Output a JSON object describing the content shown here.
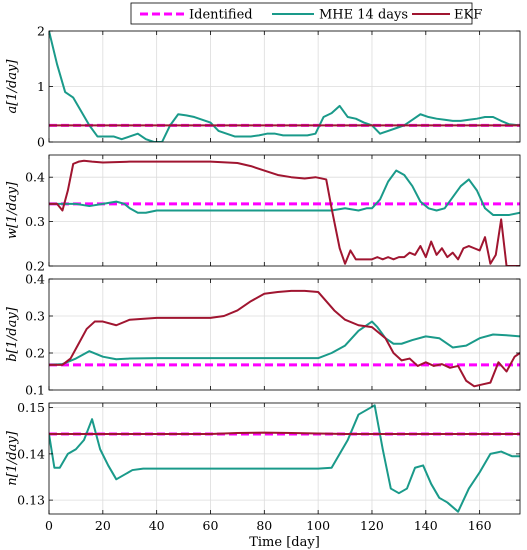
{
  "chart_data": [
    {
      "type": "line",
      "ylabel": "a[1/day]",
      "xlim": [
        0,
        175
      ],
      "ylim": [
        0,
        2
      ],
      "yticks": [
        0,
        1,
        2
      ],
      "ytick_labels": [
        "0",
        "1",
        "2"
      ],
      "grid": true,
      "series": [
        {
          "name": "Identified",
          "x": [
            0,
            175
          ],
          "y": [
            0.3,
            0.3
          ]
        },
        {
          "name": "MHE 14 days",
          "x": [
            0,
            3,
            6,
            9,
            12,
            15,
            18,
            21,
            24,
            27,
            30,
            33,
            36,
            39,
            42,
            45,
            48,
            51,
            54,
            57,
            60,
            63,
            66,
            69,
            72,
            75,
            78,
            81,
            84,
            87,
            90,
            93,
            96,
            99,
            102,
            105,
            108,
            111,
            114,
            117,
            120,
            123,
            126,
            129,
            132,
            135,
            138,
            141,
            144,
            147,
            150,
            153,
            156,
            159,
            162,
            165,
            168,
            171,
            175
          ],
          "y": [
            2.0,
            1.4,
            0.9,
            0.8,
            0.55,
            0.3,
            0.1,
            0.1,
            0.1,
            0.05,
            0.1,
            0.15,
            0.05,
            0.0,
            0.0,
            0.3,
            0.5,
            0.48,
            0.45,
            0.4,
            0.35,
            0.2,
            0.15,
            0.1,
            0.1,
            0.1,
            0.12,
            0.15,
            0.15,
            0.12,
            0.12,
            0.12,
            0.12,
            0.15,
            0.45,
            0.52,
            0.65,
            0.45,
            0.42,
            0.35,
            0.3,
            0.15,
            0.2,
            0.25,
            0.3,
            0.4,
            0.5,
            0.45,
            0.42,
            0.4,
            0.38,
            0.38,
            0.4,
            0.42,
            0.45,
            0.45,
            0.38,
            0.32,
            0.3
          ]
        },
        {
          "name": "EKF",
          "x": [
            0,
            175
          ],
          "y": [
            0.3,
            0.3
          ]
        }
      ]
    },
    {
      "type": "line",
      "ylabel": "w[1/day]",
      "xlim": [
        0,
        175
      ],
      "ylim": [
        0.2,
        0.45
      ],
      "yticks": [
        0.2,
        0.3,
        0.4
      ],
      "ytick_labels": [
        "0.2",
        "0.3",
        "0.4"
      ],
      "grid": true,
      "series": [
        {
          "name": "Identified",
          "x": [
            0,
            175
          ],
          "y": [
            0.34,
            0.34
          ]
        },
        {
          "name": "MHE 14 days",
          "x": [
            0,
            5,
            10,
            15,
            20,
            25,
            28,
            30,
            33,
            36,
            40,
            50,
            60,
            70,
            80,
            90,
            100,
            105,
            110,
            115,
            118,
            120,
            123,
            126,
            129,
            132,
            135,
            138,
            141,
            144,
            147,
            150,
            153,
            156,
            159,
            162,
            165,
            168,
            171,
            175
          ],
          "y": [
            0.34,
            0.34,
            0.34,
            0.335,
            0.34,
            0.345,
            0.34,
            0.33,
            0.32,
            0.32,
            0.325,
            0.325,
            0.325,
            0.325,
            0.325,
            0.325,
            0.325,
            0.325,
            0.33,
            0.325,
            0.33,
            0.33,
            0.35,
            0.39,
            0.415,
            0.405,
            0.38,
            0.345,
            0.33,
            0.325,
            0.33,
            0.355,
            0.38,
            0.395,
            0.37,
            0.33,
            0.315,
            0.315,
            0.315,
            0.32
          ]
        },
        {
          "name": "EKF",
          "x": [
            0,
            3,
            5,
            7,
            9,
            11,
            13,
            16,
            20,
            30,
            40,
            50,
            60,
            70,
            75,
            80,
            85,
            90,
            95,
            99,
            103,
            105,
            108,
            110,
            112,
            114,
            116,
            118,
            120,
            122,
            124,
            126,
            128,
            130,
            132,
            134,
            136,
            138,
            140,
            142,
            144,
            146,
            148,
            150,
            152,
            154,
            156,
            158,
            160,
            162,
            164,
            166,
            168,
            170,
            172,
            175
          ],
          "y": [
            0.34,
            0.34,
            0.325,
            0.37,
            0.43,
            0.435,
            0.437,
            0.435,
            0.433,
            0.435,
            0.435,
            0.435,
            0.435,
            0.432,
            0.425,
            0.415,
            0.405,
            0.4,
            0.397,
            0.4,
            0.395,
            0.33,
            0.24,
            0.205,
            0.235,
            0.215,
            0.215,
            0.215,
            0.215,
            0.22,
            0.215,
            0.22,
            0.215,
            0.22,
            0.22,
            0.23,
            0.225,
            0.245,
            0.22,
            0.255,
            0.225,
            0.24,
            0.22,
            0.23,
            0.215,
            0.24,
            0.245,
            0.24,
            0.235,
            0.265,
            0.205,
            0.225,
            0.305,
            0.2,
            0.2,
            0.2
          ]
        }
      ]
    },
    {
      "type": "line",
      "ylabel": "b[1/day]",
      "xlim": [
        0,
        175
      ],
      "ylim": [
        0.1,
        0.4
      ],
      "yticks": [
        0.1,
        0.2,
        0.3,
        0.4
      ],
      "ytick_labels": [
        "0.1",
        "0.2",
        "0.3",
        "0.4"
      ],
      "grid": true,
      "series": [
        {
          "name": "Identified",
          "x": [
            0,
            175
          ],
          "y": [
            0.168,
            0.168
          ]
        },
        {
          "name": "MHE 14 days",
          "x": [
            0,
            5,
            10,
            15,
            20,
            25,
            30,
            40,
            50,
            60,
            70,
            80,
            90,
            100,
            105,
            110,
            115,
            120,
            122,
            125,
            128,
            131,
            135,
            140,
            145,
            150,
            155,
            160,
            165,
            170,
            175
          ],
          "y": [
            0.168,
            0.17,
            0.185,
            0.205,
            0.19,
            0.183,
            0.185,
            0.186,
            0.186,
            0.186,
            0.186,
            0.186,
            0.186,
            0.186,
            0.2,
            0.22,
            0.26,
            0.285,
            0.27,
            0.24,
            0.225,
            0.225,
            0.235,
            0.245,
            0.24,
            0.215,
            0.22,
            0.24,
            0.25,
            0.248,
            0.245
          ]
        },
        {
          "name": "EKF",
          "x": [
            0,
            3,
            5,
            8,
            11,
            14,
            17,
            20,
            25,
            30,
            40,
            50,
            60,
            65,
            70,
            75,
            80,
            85,
            90,
            95,
            100,
            103,
            106,
            110,
            115,
            120,
            125,
            128,
            131,
            134,
            137,
            140,
            143,
            146,
            149,
            152,
            155,
            158,
            161,
            164,
            167,
            170,
            173,
            175
          ],
          "y": [
            0.168,
            0.168,
            0.168,
            0.185,
            0.225,
            0.265,
            0.285,
            0.285,
            0.275,
            0.29,
            0.295,
            0.295,
            0.295,
            0.3,
            0.315,
            0.34,
            0.36,
            0.365,
            0.368,
            0.368,
            0.365,
            0.34,
            0.315,
            0.29,
            0.275,
            0.27,
            0.24,
            0.2,
            0.18,
            0.185,
            0.165,
            0.175,
            0.165,
            0.17,
            0.16,
            0.165,
            0.125,
            0.11,
            0.115,
            0.12,
            0.175,
            0.15,
            0.19,
            0.2
          ]
        }
      ]
    },
    {
      "type": "line",
      "ylabel": "n[1/day]",
      "xlabel": "Time [day]",
      "xlim": [
        0,
        175
      ],
      "ylim": [
        0.127,
        0.151
      ],
      "yticks": [
        0.13,
        0.14,
        0.15
      ],
      "ytick_labels": [
        "0.13",
        "0.14",
        "0.15"
      ],
      "xticks": [
        0,
        20,
        40,
        60,
        80,
        100,
        120,
        140,
        160
      ],
      "xtick_labels": [
        "0",
        "20",
        "40",
        "60",
        "80",
        "100",
        "120",
        "140",
        "160"
      ],
      "grid": true,
      "series": [
        {
          "name": "Identified",
          "x": [
            0,
            175
          ],
          "y": [
            0.1443,
            0.1443
          ]
        },
        {
          "name": "MHE 14 days",
          "x": [
            0,
            2,
            4,
            7,
            10,
            13,
            16,
            19,
            22,
            25,
            28,
            31,
            35,
            40,
            50,
            60,
            70,
            80,
            90,
            100,
            105,
            108,
            111,
            115,
            118,
            121,
            124,
            127,
            130,
            133,
            136,
            139,
            142,
            145,
            148,
            152,
            156,
            160,
            164,
            168,
            172,
            175
          ],
          "y": [
            0.1443,
            0.137,
            0.137,
            0.14,
            0.141,
            0.143,
            0.1475,
            0.141,
            0.1375,
            0.1345,
            0.1355,
            0.1365,
            0.1368,
            0.1368,
            0.1368,
            0.1368,
            0.1368,
            0.1368,
            0.1368,
            0.1368,
            0.137,
            0.14,
            0.143,
            0.1485,
            0.1495,
            0.1505,
            0.141,
            0.1325,
            0.1315,
            0.1325,
            0.137,
            0.1375,
            0.1335,
            0.1305,
            0.1295,
            0.1275,
            0.1325,
            0.136,
            0.14,
            0.1405,
            0.1395,
            0.1395
          ]
        },
        {
          "name": "EKF",
          "x": [
            0,
            20,
            40,
            60,
            70,
            80,
            90,
            100,
            110,
            120,
            140,
            160,
            175
          ],
          "y": [
            0.1443,
            0.1443,
            0.1443,
            0.1443,
            0.1445,
            0.1446,
            0.1445,
            0.1444,
            0.1443,
            0.1443,
            0.1443,
            0.1443,
            0.1443
          ]
        }
      ]
    }
  ],
  "legend": {
    "items": [
      {
        "label": "Identified",
        "color": "#ff00ff",
        "dashed": true
      },
      {
        "label": "MHE 14 days",
        "color": "#1a9a8a",
        "dashed": false
      },
      {
        "label": "EKF",
        "color": "#a01530",
        "dashed": false
      }
    ]
  },
  "colors": {
    "identified": "#ff00ff",
    "mhe": "#1a9a8a",
    "ekf": "#a01530",
    "grid": "#dcdcdc",
    "axis": "#000000"
  }
}
